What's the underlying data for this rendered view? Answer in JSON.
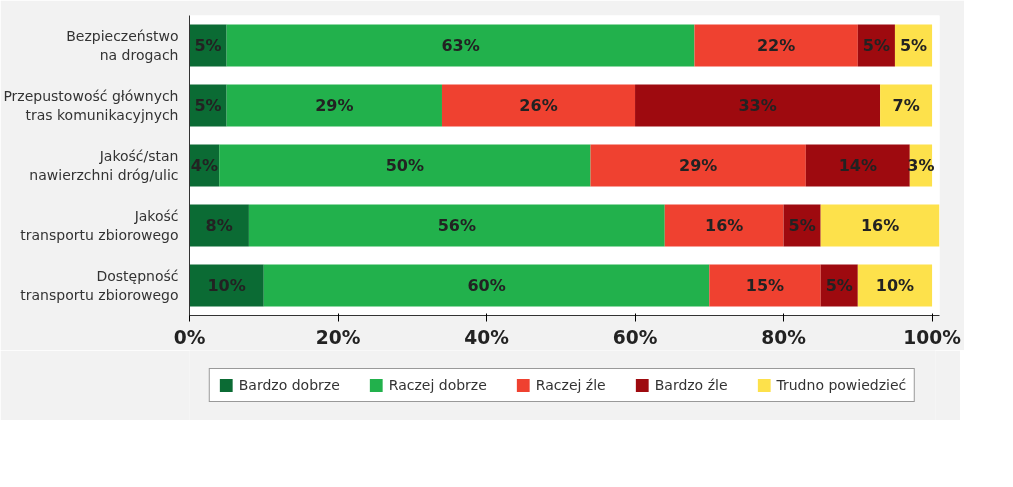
{
  "chart_data": {
    "type": "bar",
    "orientation": "horizontal",
    "stacked": true,
    "legend": "bottom",
    "grid": false,
    "categories": [
      "Bezpieczeństwo\nna drogach",
      "Przepustowość głównych\ntras komunikacyjnych",
      "Jakość/stan\nnawierzchni dróg/ulic",
      "Jakość\ntransportu zbiorowego",
      "Dostępność\ntransportu zbiorowego"
    ],
    "series": [
      {
        "name": "Bardzo dobrze",
        "color": "#0b6b34",
        "values": [
          5,
          5,
          4,
          8,
          10
        ],
        "value_labels": [
          "5%",
          "5%",
          "4%",
          "8%",
          "10%"
        ]
      },
      {
        "name": "Raczej dobrze",
        "color": "#22b14c",
        "values": [
          63,
          29,
          50,
          56,
          60
        ],
        "value_labels": [
          "63%",
          "29%",
          "50%",
          "56%",
          "60%"
        ]
      },
      {
        "name": "Raczej źle",
        "color": "#ef4130",
        "values": [
          22,
          26,
          29,
          16,
          15
        ],
        "value_labels": [
          "22%",
          "26%",
          "29%",
          "16%",
          "15%"
        ]
      },
      {
        "name": "Bardzo źle",
        "color": "#9e0a0f",
        "values": [
          5,
          33,
          14,
          5,
          5
        ],
        "value_labels": [
          "5%",
          "33%",
          "14%",
          "5%",
          "5%"
        ]
      },
      {
        "name": "Trudno powiedzieć",
        "color": "#fde14b",
        "values": [
          5,
          7,
          3,
          16,
          10
        ],
        "value_labels": [
          "5%",
          "7%",
          "3%",
          "16%",
          "10%"
        ]
      }
    ],
    "xlim": [
      0,
      101
    ],
    "xticks": [
      {
        "value": 0,
        "label": "0%"
      },
      {
        "value": 20,
        "label": "20%"
      },
      {
        "value": 40,
        "label": "40%"
      },
      {
        "value": 60,
        "label": "60%"
      },
      {
        "value": 80,
        "label": "80%"
      },
      {
        "value": 100,
        "label": "100%"
      }
    ]
  }
}
